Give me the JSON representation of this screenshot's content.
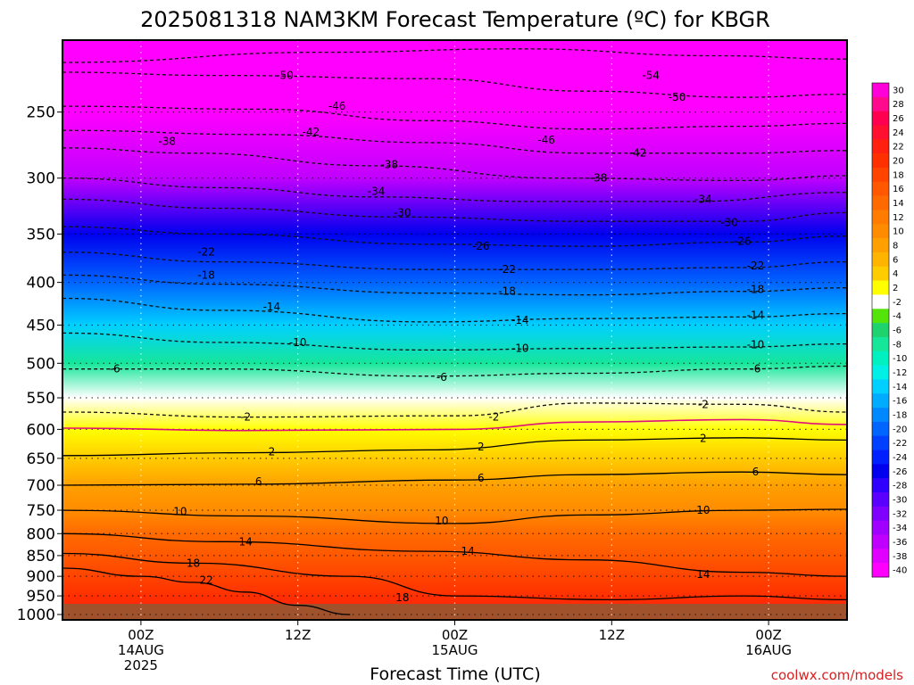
{
  "chart_data": {
    "type": "heatmap",
    "title": "2025081318 NAM3KM Forecast Temperature (ºC) for KBGR",
    "xlabel": "Forecast Time (UTC)",
    "ylabel": "",
    "credit": "coolwx.com/models",
    "y_scale": "log",
    "y_inverted": true,
    "y_axis": {
      "unit": "hPa",
      "range": [
        1015,
        205
      ],
      "ticks": [
        250,
        300,
        350,
        400,
        450,
        500,
        550,
        600,
        650,
        700,
        750,
        800,
        850,
        900,
        950,
        1000
      ]
    },
    "x_axis": {
      "unit": "hours after 2025-08-13 18Z",
      "range": [
        0,
        60
      ],
      "ticks": [
        {
          "hour": 6,
          "lines": [
            "00Z",
            "14AUG",
            "2025"
          ]
        },
        {
          "hour": 18,
          "lines": [
            "12Z"
          ]
        },
        {
          "hour": 30,
          "lines": [
            "00Z",
            "15AUG"
          ]
        },
        {
          "hour": 42,
          "lines": [
            "12Z"
          ]
        },
        {
          "hour": 54,
          "lines": [
            "00Z",
            "16AUG"
          ]
        }
      ]
    },
    "grid": true,
    "colorbar": {
      "placement": "right",
      "labels": [
        30,
        28,
        26,
        24,
        22,
        20,
        18,
        16,
        14,
        12,
        10,
        8,
        6,
        4,
        2,
        -2,
        -4,
        -6,
        -8,
        -10,
        -12,
        -14,
        -16,
        -18,
        -20,
        -22,
        -24,
        -26,
        -28,
        -30,
        -32,
        -34,
        -36,
        -38,
        -40
      ],
      "colors": [
        "#ff00d8",
        "#ff0a8c",
        "#ff0050",
        "#ff1030",
        "#ff2010",
        "#ff3000",
        "#ff4400",
        "#ff5800",
        "#ff6a00",
        "#ff7c00",
        "#ff8c00",
        "#ffa000",
        "#ffb400",
        "#ffcc00",
        "#ffff00",
        "#ffffff",
        "#55e40a",
        "#1ed26e",
        "#16e69a",
        "#00f0c0",
        "#00f0e6",
        "#00d0ff",
        "#00acff",
        "#0088ff",
        "#0064ff",
        "#0040ff",
        "#0020ff",
        "#0000ee",
        "#3000ff",
        "#5a00ff",
        "#8000ff",
        "#a000ff",
        "#c000ff",
        "#e000ff",
        "#ff00ff"
      ]
    },
    "temperature_profile": [
      {
        "hPa": 1000,
        "temp": 22
      },
      {
        "hPa": 950,
        "temp": 20
      },
      {
        "hPa": 900,
        "temp": 18
      },
      {
        "hPa": 850,
        "temp": 16
      },
      {
        "hPa": 800,
        "temp": 13
      },
      {
        "hPa": 750,
        "temp": 10
      },
      {
        "hPa": 700,
        "temp": 7
      },
      {
        "hPa": 650,
        "temp": 4
      },
      {
        "hPa": 600,
        "temp": 1
      },
      {
        "hPa": 550,
        "temp": -3
      },
      {
        "hPa": 500,
        "temp": -9
      },
      {
        "hPa": 450,
        "temp": -14
      },
      {
        "hPa": 400,
        "temp": -20
      },
      {
        "hPa": 350,
        "temp": -27
      },
      {
        "hPa": 300,
        "temp": -36
      },
      {
        "hPa": 250,
        "temp": -44
      },
      {
        "hPa": 215,
        "temp": -50
      }
    ],
    "contours": [
      {
        "level": -54,
        "style": "dashed",
        "points": [
          [
            0,
            218
          ],
          [
            20,
            212
          ],
          [
            35,
            210
          ],
          [
            50,
            214
          ],
          [
            60,
            216
          ]
        ]
      },
      {
        "level": -50,
        "style": "dashed",
        "points": [
          [
            0,
            224
          ],
          [
            12,
            226
          ],
          [
            28,
            228
          ],
          [
            40,
            236
          ],
          [
            52,
            240
          ],
          [
            60,
            238
          ]
        ]
      },
      {
        "level": -46,
        "style": "dashed",
        "points": [
          [
            0,
            246
          ],
          [
            15,
            248
          ],
          [
            28,
            256
          ],
          [
            40,
            262
          ],
          [
            52,
            260
          ],
          [
            60,
            258
          ]
        ]
      },
      {
        "level": -42,
        "style": "dashed",
        "points": [
          [
            0,
            263
          ],
          [
            15,
            266
          ],
          [
            28,
            272
          ],
          [
            40,
            280
          ],
          [
            52,
            280
          ],
          [
            60,
            278
          ]
        ]
      },
      {
        "level": -38,
        "style": "dashed",
        "points": [
          [
            0,
            276
          ],
          [
            10,
            280
          ],
          [
            24,
            290
          ],
          [
            38,
            300
          ],
          [
            52,
            302
          ],
          [
            60,
            298
          ]
        ]
      },
      {
        "level": -34,
        "style": "dashed",
        "points": [
          [
            0,
            300
          ],
          [
            12,
            308
          ],
          [
            24,
            316
          ],
          [
            36,
            320
          ],
          [
            48,
            320
          ],
          [
            60,
            312
          ]
        ]
      },
      {
        "level": -30,
        "style": "dashed",
        "points": [
          [
            0,
            318
          ],
          [
            12,
            326
          ],
          [
            26,
            334
          ],
          [
            40,
            338
          ],
          [
            52,
            338
          ],
          [
            60,
            330
          ]
        ]
      },
      {
        "level": -26,
        "style": "dashed",
        "points": [
          [
            0,
            343
          ],
          [
            12,
            350
          ],
          [
            28,
            360
          ],
          [
            40,
            362
          ],
          [
            52,
            358
          ],
          [
            60,
            352
          ]
        ]
      },
      {
        "level": -22,
        "style": "dashed",
        "points": [
          [
            0,
            368
          ],
          [
            12,
            378
          ],
          [
            28,
            386
          ],
          [
            40,
            386
          ],
          [
            52,
            384
          ],
          [
            60,
            378
          ]
        ]
      },
      {
        "level": -18,
        "style": "dashed",
        "points": [
          [
            0,
            392
          ],
          [
            12,
            402
          ],
          [
            28,
            412
          ],
          [
            40,
            414
          ],
          [
            52,
            410
          ],
          [
            60,
            406
          ]
        ]
      },
      {
        "level": -14,
        "style": "dashed",
        "points": [
          [
            0,
            418
          ],
          [
            12,
            432
          ],
          [
            28,
            446
          ],
          [
            40,
            442
          ],
          [
            52,
            440
          ],
          [
            60,
            436
          ]
        ]
      },
      {
        "level": -10,
        "style": "dashed",
        "points": [
          [
            0,
            460
          ],
          [
            12,
            472
          ],
          [
            28,
            482
          ],
          [
            40,
            480
          ],
          [
            52,
            478
          ],
          [
            60,
            474
          ]
        ]
      },
      {
        "level": -6,
        "style": "dashed",
        "points": [
          [
            0,
            508
          ],
          [
            12,
            508
          ],
          [
            28,
            518
          ],
          [
            40,
            514
          ],
          [
            52,
            508
          ],
          [
            60,
            504
          ]
        ]
      },
      {
        "level": -2,
        "style": "dashed",
        "points": [
          [
            0,
            572
          ],
          [
            14,
            580
          ],
          [
            30,
            578
          ],
          [
            40,
            558
          ],
          [
            52,
            560
          ],
          [
            60,
            572
          ]
        ]
      },
      {
        "level": 0,
        "style": "magenta",
        "points": [
          [
            0,
            598
          ],
          [
            14,
            602
          ],
          [
            30,
            600
          ],
          [
            40,
            588
          ],
          [
            52,
            584
          ],
          [
            60,
            592
          ]
        ]
      },
      {
        "level": 2,
        "style": "solid",
        "points": [
          [
            0,
            645
          ],
          [
            14,
            640
          ],
          [
            28,
            635
          ],
          [
            40,
            618
          ],
          [
            52,
            614
          ],
          [
            60,
            618
          ]
        ]
      },
      {
        "level": 6,
        "style": "solid",
        "points": [
          [
            0,
            700
          ],
          [
            14,
            698
          ],
          [
            30,
            690
          ],
          [
            40,
            680
          ],
          [
            52,
            675
          ],
          [
            60,
            680
          ]
        ]
      },
      {
        "level": 10,
        "style": "solid",
        "points": [
          [
            0,
            750
          ],
          [
            14,
            762
          ],
          [
            30,
            778
          ],
          [
            40,
            760
          ],
          [
            52,
            750
          ],
          [
            60,
            748
          ]
        ]
      },
      {
        "level": 14,
        "style": "solid",
        "points": [
          [
            0,
            800
          ],
          [
            12,
            818
          ],
          [
            28,
            840
          ],
          [
            40,
            860
          ],
          [
            52,
            890
          ],
          [
            60,
            900
          ]
        ]
      },
      {
        "level": 18,
        "style": "solid",
        "points": [
          [
            0,
            845
          ],
          [
            10,
            868
          ],
          [
            22,
            900
          ],
          [
            30,
            950
          ],
          [
            42,
            960
          ],
          [
            52,
            950
          ],
          [
            60,
            960
          ]
        ]
      },
      {
        "level": 22,
        "style": "solid",
        "points": [
          [
            0,
            880
          ],
          [
            6,
            900
          ],
          [
            10,
            915
          ],
          [
            14,
            940
          ],
          [
            18,
            975
          ],
          [
            22,
            1000
          ]
        ]
      }
    ],
    "contour_labels": [
      {
        "text": "-50",
        "hour": 17,
        "hPa": 226
      },
      {
        "text": "-54",
        "hour": 45,
        "hPa": 226
      },
      {
        "text": "-50",
        "hour": 47,
        "hPa": 240
      },
      {
        "text": "-46",
        "hour": 21,
        "hPa": 246
      },
      {
        "text": "-42",
        "hour": 19,
        "hPa": 264
      },
      {
        "text": "-46",
        "hour": 37,
        "hPa": 270
      },
      {
        "text": "-38",
        "hour": 8,
        "hPa": 271
      },
      {
        "text": "-42",
        "hour": 44,
        "hPa": 280
      },
      {
        "text": "-38",
        "hour": 25,
        "hPa": 289
      },
      {
        "text": "-38",
        "hour": 41,
        "hPa": 300
      },
      {
        "text": "-34",
        "hour": 24,
        "hPa": 311
      },
      {
        "text": "-34",
        "hour": 49,
        "hPa": 318
      },
      {
        "text": "-30",
        "hour": 26,
        "hPa": 330
      },
      {
        "text": "-30",
        "hour": 51,
        "hPa": 339
      },
      {
        "text": "-26",
        "hour": 32,
        "hPa": 362
      },
      {
        "text": "-26",
        "hour": 52,
        "hPa": 357
      },
      {
        "text": "-22",
        "hour": 11,
        "hPa": 368
      },
      {
        "text": "-22",
        "hour": 34,
        "hPa": 386
      },
      {
        "text": "-22",
        "hour": 53,
        "hPa": 382
      },
      {
        "text": "-18",
        "hour": 11,
        "hPa": 392
      },
      {
        "text": "-18",
        "hour": 34,
        "hPa": 410
      },
      {
        "text": "-18",
        "hour": 53,
        "hPa": 408
      },
      {
        "text": "-14",
        "hour": 16,
        "hPa": 428
      },
      {
        "text": "-14",
        "hour": 35,
        "hPa": 444
      },
      {
        "text": "-14",
        "hour": 53,
        "hPa": 438
      },
      {
        "text": "-10",
        "hour": 18,
        "hPa": 472
      },
      {
        "text": "-10",
        "hour": 35,
        "hPa": 480
      },
      {
        "text": "-10",
        "hour": 53,
        "hPa": 475
      },
      {
        "text": "-6",
        "hour": 4,
        "hPa": 508
      },
      {
        "text": "-6",
        "hour": 29,
        "hPa": 520
      },
      {
        "text": "-6",
        "hour": 53,
        "hPa": 508
      },
      {
        "text": "-2",
        "hour": 14,
        "hPa": 580
      },
      {
        "text": "-2",
        "hour": 33,
        "hPa": 580
      },
      {
        "text": "-2",
        "hour": 49,
        "hPa": 560
      },
      {
        "text": "2",
        "hour": 16,
        "hPa": 638
      },
      {
        "text": "2",
        "hour": 32,
        "hPa": 630
      },
      {
        "text": "2",
        "hour": 49,
        "hPa": 615
      },
      {
        "text": "6",
        "hour": 15,
        "hPa": 693
      },
      {
        "text": "6",
        "hour": 32,
        "hPa": 686
      },
      {
        "text": "6",
        "hour": 53,
        "hPa": 675
      },
      {
        "text": "10",
        "hour": 9,
        "hPa": 753
      },
      {
        "text": "10",
        "hour": 29,
        "hPa": 772
      },
      {
        "text": "10",
        "hour": 49,
        "hPa": 750
      },
      {
        "text": "14",
        "hour": 14,
        "hPa": 818
      },
      {
        "text": "14",
        "hour": 31,
        "hPa": 840
      },
      {
        "text": "14",
        "hour": 49,
        "hPa": 895
      },
      {
        "text": "18",
        "hour": 10,
        "hPa": 868
      },
      {
        "text": "18",
        "hour": 26,
        "hPa": 955
      },
      {
        "text": "22",
        "hour": 11,
        "hPa": 910
      }
    ]
  }
}
